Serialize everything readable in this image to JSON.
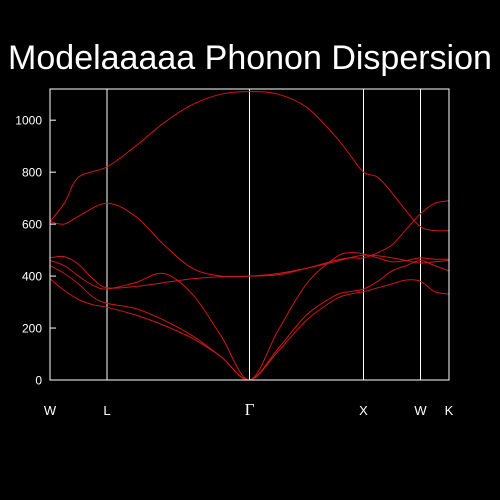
{
  "chart_data": {
    "type": "line",
    "title": "Modelaaaaa Phonon Dispersion",
    "xlabel": "",
    "ylabel": "",
    "ylim": [
      0,
      1120
    ],
    "xlim": [
      0,
      7.0
    ],
    "yticks": [
      0,
      200,
      400,
      600,
      800,
      1000
    ],
    "high_symmetry_points": [
      {
        "label": "W",
        "x": 0.0
      },
      {
        "label": "L",
        "x": 1.0
      },
      {
        "label": "Γ",
        "x": 3.5
      },
      {
        "label": "X",
        "x": 5.5
      },
      {
        "label": "W",
        "x": 6.5
      },
      {
        "label": "K",
        "x": 7.0
      }
    ],
    "grid": false,
    "legend": "none",
    "line_color": "#d01818",
    "axis_color": "#ffffff",
    "background": "#000000",
    "series": [
      {
        "x": [
          0,
          0.25,
          0.5,
          1.0,
          1.5,
          2.0,
          2.5,
          3.0,
          3.5,
          4.0,
          4.5,
          5.0,
          5.25,
          5.5,
          5.75,
          6.0,
          6.25,
          6.5,
          6.75,
          7.0
        ],
        "values": [
          610,
          680,
          780,
          820,
          900,
          990,
          1060,
          1100,
          1110,
          1100,
          1050,
          940,
          870,
          800,
          780,
          720,
          650,
          590,
          575,
          575
        ]
      },
      {
        "x": [
          0,
          0.25,
          0.5,
          1.0,
          1.5,
          2.0,
          2.5,
          3.0,
          3.5,
          4.0,
          4.5,
          5.0,
          5.25,
          5.5,
          5.75,
          6.0,
          6.25,
          6.5,
          6.75,
          7.0
        ],
        "values": [
          610,
          600,
          630,
          680,
          630,
          520,
          430,
          400,
          400,
          405,
          430,
          460,
          470,
          470,
          490,
          520,
          580,
          640,
          680,
          690
        ]
      },
      {
        "x": [
          0,
          0.25,
          0.5,
          0.75,
          1.0,
          1.5,
          2.0,
          2.5,
          3.0,
          3.5,
          4.0,
          4.5,
          5.0,
          5.25,
          5.5,
          5.75,
          6.0,
          6.25,
          6.5,
          6.75,
          7.0
        ],
        "values": [
          470,
          475,
          445,
          390,
          355,
          360,
          375,
          390,
          398,
          400,
          410,
          430,
          455,
          470,
          480,
          478,
          470,
          460,
          450,
          455,
          460
        ]
      },
      {
        "x": [
          0,
          0.25,
          0.5,
          0.75,
          1.0,
          1.5,
          2.0,
          2.5,
          3.0,
          3.5,
          4.0,
          4.5,
          5.0,
          5.25,
          5.5,
          5.75,
          6.0,
          6.25,
          6.5,
          6.75,
          7.0
        ],
        "values": [
          460,
          440,
          400,
          365,
          350,
          375,
          410,
          330,
          170,
          0,
          190,
          370,
          470,
          490,
          485,
          470,
          455,
          460,
          470,
          465,
          465
        ]
      },
      {
        "x": [
          0,
          0.25,
          0.5,
          0.75,
          1.0,
          1.5,
          2.0,
          2.5,
          3.0,
          3.5,
          4.0,
          4.5,
          5.0,
          5.25,
          5.5,
          5.75,
          6.0,
          6.25,
          6.5,
          6.75,
          7.0
        ],
        "values": [
          440,
          410,
          370,
          320,
          295,
          275,
          230,
          170,
          90,
          0,
          120,
          250,
          325,
          340,
          350,
          380,
          420,
          440,
          460,
          440,
          420
        ]
      },
      {
        "x": [
          0,
          0.25,
          0.5,
          0.75,
          1.0,
          1.5,
          2.0,
          2.5,
          3.0,
          3.5,
          4.0,
          4.5,
          5.0,
          5.25,
          5.5,
          5.75,
          6.0,
          6.25,
          6.5,
          6.75,
          7.0
        ],
        "values": [
          390,
          345,
          310,
          290,
          280,
          250,
          210,
          160,
          90,
          0,
          110,
          230,
          310,
          330,
          340,
          355,
          370,
          385,
          380,
          340,
          330
        ]
      }
    ]
  }
}
